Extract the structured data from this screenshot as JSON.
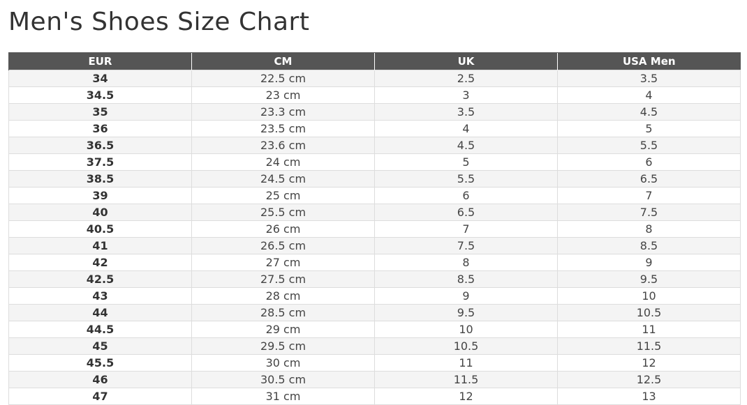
{
  "title": "Men's Shoes Size Chart",
  "table": {
    "headers": [
      "EUR",
      "CM",
      "UK",
      "USA Men"
    ],
    "rows": [
      [
        "34",
        "22.5 cm",
        "2.5",
        "3.5"
      ],
      [
        "34.5",
        "23 cm",
        "3",
        "4"
      ],
      [
        "35",
        "23.3 cm",
        "3.5",
        "4.5"
      ],
      [
        "36",
        "23.5 cm",
        "4",
        "5"
      ],
      [
        "36.5",
        "23.6 cm",
        "4.5",
        "5.5"
      ],
      [
        "37.5",
        "24 cm",
        "5",
        "6"
      ],
      [
        "38.5",
        "24.5 cm",
        "5.5",
        "6.5"
      ],
      [
        "39",
        "25 cm",
        "6",
        "7"
      ],
      [
        "40",
        "25.5 cm",
        "6.5",
        "7.5"
      ],
      [
        "40.5",
        "26 cm",
        "7",
        "8"
      ],
      [
        "41",
        "26.5 cm",
        "7.5",
        "8.5"
      ],
      [
        "42",
        "27 cm",
        "8",
        "9"
      ],
      [
        "42.5",
        "27.5 cm",
        "8.5",
        "9.5"
      ],
      [
        "43",
        "28 cm",
        "9",
        "10"
      ],
      [
        "44",
        "28.5 cm",
        "9.5",
        "10.5"
      ],
      [
        "44.5",
        "29 cm",
        "10",
        "11"
      ],
      [
        "45",
        "29.5 cm",
        "10.5",
        "11.5"
      ],
      [
        "45.5",
        "30 cm",
        "11",
        "12"
      ],
      [
        "46",
        "30.5 cm",
        "11.5",
        "12.5"
      ],
      [
        "47",
        "31 cm",
        "12",
        "13"
      ]
    ]
  },
  "colors": {
    "header_bg": "#555555",
    "header_text": "#ffffff",
    "stripe": "#f4f4f4",
    "border": "#dddddd"
  }
}
